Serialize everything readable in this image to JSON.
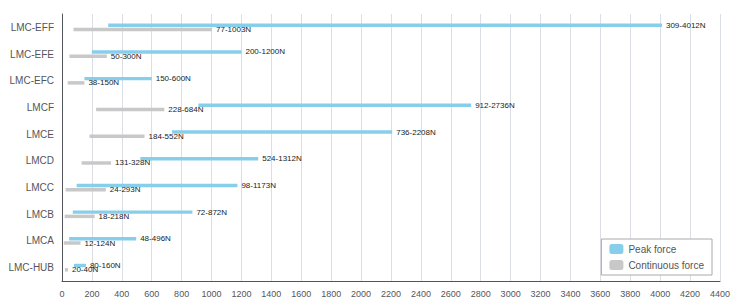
{
  "chart_data": {
    "type": "bar",
    "orientation": "horizontal",
    "categories": [
      "LMC-EFF",
      "LMC-EFE",
      "LMC-EFC",
      "LMCF",
      "LMCE",
      "LMCD",
      "LMCC",
      "LMCB",
      "LMCA",
      "LMC-HUB"
    ],
    "series": [
      {
        "name": "Peak force",
        "color": "#87CEEB",
        "values": [
          [
            309,
            4012
          ],
          [
            200,
            1200
          ],
          [
            150,
            600
          ],
          [
            912,
            2736
          ],
          [
            736,
            2208
          ],
          [
            524,
            1312
          ],
          [
            98,
            1173
          ],
          [
            72,
            872
          ],
          [
            48,
            496
          ],
          [
            80,
            160
          ]
        ],
        "value_labels": [
          "309-4012N",
          "200-1200N",
          "150-600N",
          "912-2736N",
          "736-2208N",
          "524-1312N",
          "98-1173N",
          "72-872N",
          "48-496N",
          "80-160N"
        ]
      },
      {
        "name": "Continuous force",
        "color": "#C8C8C8",
        "values": [
          [
            77,
            1003
          ],
          [
            50,
            300
          ],
          [
            38,
            150
          ],
          [
            228,
            684
          ],
          [
            184,
            552
          ],
          [
            131,
            328
          ],
          [
            24,
            293
          ],
          [
            18,
            218
          ],
          [
            12,
            124
          ],
          [
            20,
            40
          ]
        ],
        "value_labels": [
          "77-1003N",
          "50-300N",
          "38-150N",
          "228-684N",
          "184-552N",
          "131-328N",
          "24-293N",
          "18-218N",
          "12-124N",
          "20-40N"
        ]
      }
    ],
    "xlim": [
      0,
      4400
    ],
    "xticks": [
      0,
      200,
      400,
      600,
      800,
      1000,
      1200,
      1400,
      1600,
      1800,
      2000,
      2200,
      2400,
      2600,
      2800,
      3000,
      3200,
      3400,
      3600,
      3800,
      4000,
      4200,
      4400
    ],
    "grid": true,
    "legend": "lower right",
    "data_labels": true
  }
}
